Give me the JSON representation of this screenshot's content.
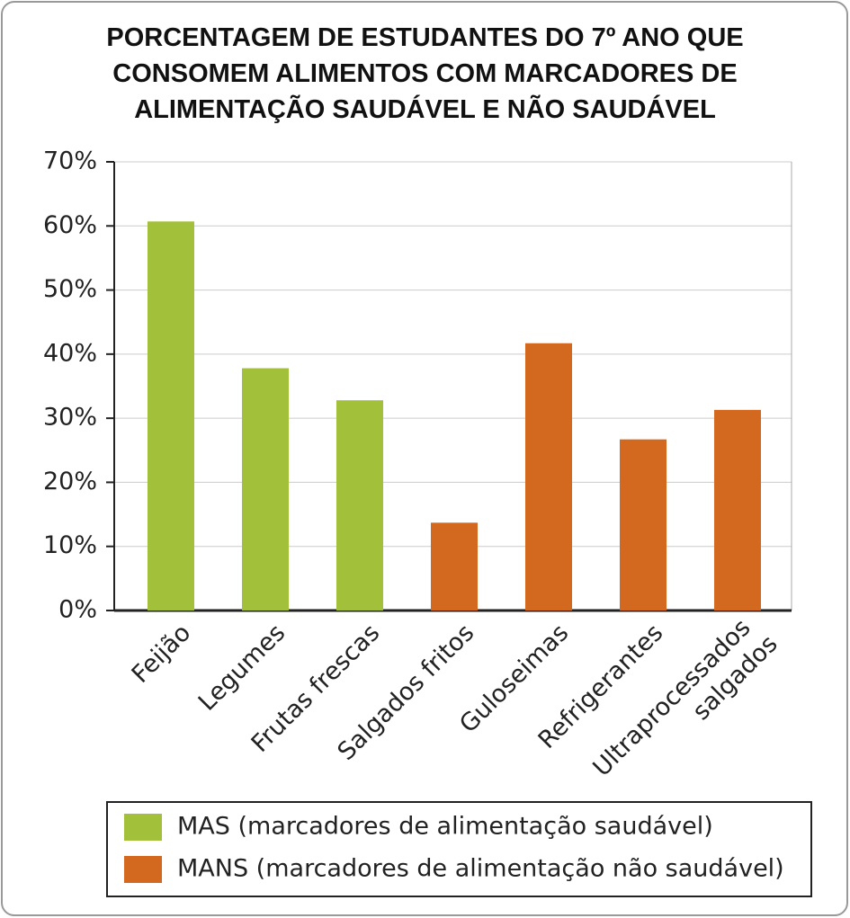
{
  "chart_data": {
    "type": "bar",
    "title": "PORCENTAGEM DE ESTUDANTES DO 7º ANO QUE CONSOMEM ALIMENTOS COM MARCADORES DE ALIMENTAÇÃO SAUDÁVEL E NÃO SAUDÁVEL",
    "categories": [
      "Feijão",
      "Legumes",
      "Frutas frescas",
      "Salgados fritos",
      "Guloseimas",
      "Refrigerantes",
      "Ultraprocessados salgados"
    ],
    "series": [
      {
        "name": "MAS (marcadores de alimentação saudável)",
        "color": "#a3c03a",
        "values": [
          60.7,
          37.8,
          32.8,
          null,
          null,
          null,
          null
        ]
      },
      {
        "name": "MANS (marcadores de alimentação não saudável)",
        "color": "#d2691e",
        "values": [
          null,
          null,
          null,
          13.7,
          41.7,
          26.7,
          31.3
        ]
      }
    ],
    "ylim": [
      0,
      70
    ],
    "yticks": [
      {
        "value": 0,
        "label": "0%"
      },
      {
        "value": 10,
        "label": "10%"
      },
      {
        "value": 20,
        "label": "20%"
      },
      {
        "value": 30,
        "label": "30%"
      },
      {
        "value": 40,
        "label": "40%"
      },
      {
        "value": 50,
        "label": "50%"
      },
      {
        "value": 60,
        "label": "60%"
      },
      {
        "value": 70,
        "label": "70%"
      }
    ],
    "grid": true
  }
}
